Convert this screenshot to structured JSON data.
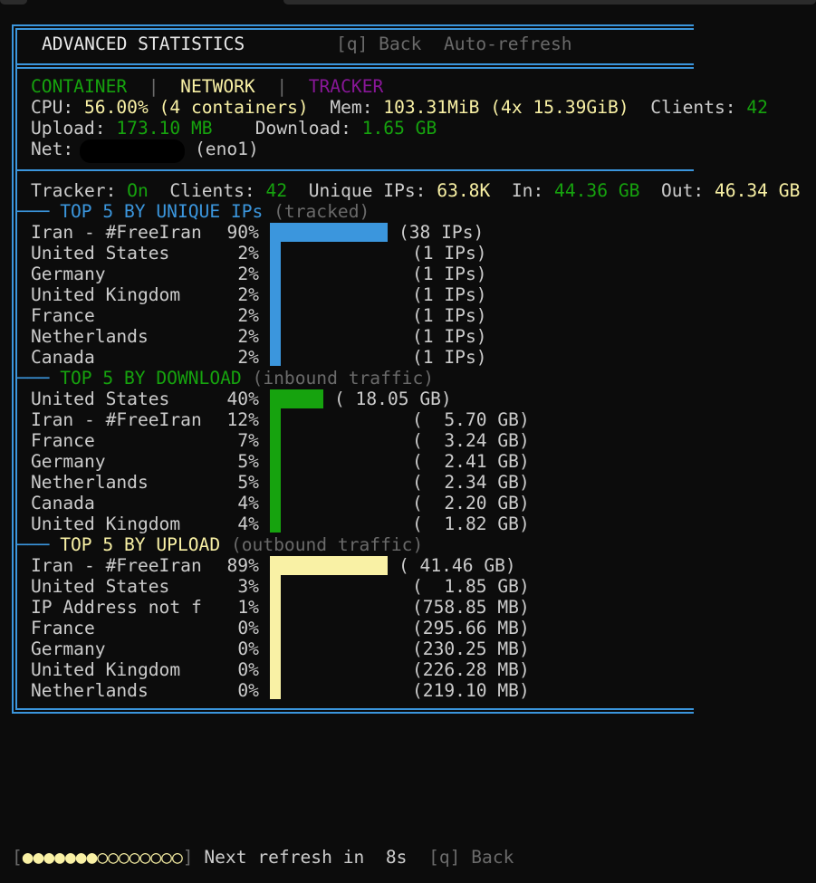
{
  "header": {
    "title": "ADVANCED STATISTICS",
    "back": "[q] Back",
    "auto_refresh": "Auto-refresh"
  },
  "tabs": {
    "container": "CONTAINER",
    "sep": "|",
    "network": "NETWORK",
    "tracker": "TRACKER"
  },
  "stats": {
    "cpu_label": "CPU:",
    "cpu_value": "56.00% (4 containers)",
    "mem_label": "Mem:",
    "mem_value": "103.31MiB (4x 15.39GiB)",
    "clients_label": "Clients:",
    "clients_value": "42",
    "upload_label": "Upload:",
    "upload_value": "173.10 MB",
    "download_label": "Download:",
    "download_value": "1.65 GB",
    "net_label": "Net:",
    "net_iface": "(eno1)"
  },
  "tracker": {
    "tracker_label": "Tracker:",
    "tracker_value": "On",
    "clients_label": "Clients:",
    "clients_value": "42",
    "unique_label": "Unique IPs:",
    "unique_value": "63.8K",
    "in_label": "In:",
    "in_value": "44.36 GB",
    "out_label": "Out:",
    "out_value": "46.34 GB"
  },
  "sections": [
    {
      "title": "TOP 5 BY UNIQUE IPs",
      "subtitle": "(tracked)",
      "color": "#3b96dd",
      "rows": [
        {
          "name": "Iran - #FreeIran",
          "pct": 90,
          "pct_label": "90%",
          "value": "(38 IPs)"
        },
        {
          "name": "United States",
          "pct": 2,
          "pct_label": "2%",
          "value": "(1 IPs)"
        },
        {
          "name": "Germany",
          "pct": 2,
          "pct_label": "2%",
          "value": "(1 IPs)"
        },
        {
          "name": "United Kingdom",
          "pct": 2,
          "pct_label": "2%",
          "value": "(1 IPs)"
        },
        {
          "name": "France",
          "pct": 2,
          "pct_label": "2%",
          "value": "(1 IPs)"
        },
        {
          "name": "Netherlands",
          "pct": 2,
          "pct_label": "2%",
          "value": "(1 IPs)"
        },
        {
          "name": "Canada",
          "pct": 2,
          "pct_label": "2%",
          "value": "(1 IPs)"
        }
      ]
    },
    {
      "title": "TOP 5 BY DOWNLOAD",
      "subtitle": "(inbound traffic)",
      "color": "#16a30e",
      "rows": [
        {
          "name": "United States",
          "pct": 40,
          "pct_label": "40%",
          "value": "( 18.05 GB)"
        },
        {
          "name": "Iran - #FreeIran",
          "pct": 12,
          "pct_label": "12%",
          "value": "(  5.70 GB)"
        },
        {
          "name": "France",
          "pct": 7,
          "pct_label": "7%",
          "value": "(  3.24 GB)"
        },
        {
          "name": "Germany",
          "pct": 5,
          "pct_label": "5%",
          "value": "(  2.41 GB)"
        },
        {
          "name": "Netherlands",
          "pct": 5,
          "pct_label": "5%",
          "value": "(  2.34 GB)"
        },
        {
          "name": "Canada",
          "pct": 4,
          "pct_label": "4%",
          "value": "(  2.20 GB)"
        },
        {
          "name": "United Kingdom",
          "pct": 4,
          "pct_label": "4%",
          "value": "(  1.82 GB)"
        }
      ]
    },
    {
      "title": "TOP 5 BY UPLOAD",
      "subtitle": "(outbound traffic)",
      "color": "#f9f1a5",
      "rows": [
        {
          "name": "Iran - #FreeIran",
          "pct": 89,
          "pct_label": "89%",
          "value": "( 41.46 GB)"
        },
        {
          "name": "United States",
          "pct": 3,
          "pct_label": "3%",
          "value": "(  1.85 GB)"
        },
        {
          "name": "IP Address not f",
          "pct": 1,
          "pct_label": "1%",
          "value": "(758.85 MB)"
        },
        {
          "name": "France",
          "pct": 0,
          "pct_label": "0%",
          "value": "(295.66 MB)"
        },
        {
          "name": "Germany",
          "pct": 0,
          "pct_label": "0%",
          "value": "(230.25 MB)"
        },
        {
          "name": "United Kingdom",
          "pct": 0,
          "pct_label": "0%",
          "value": "(226.28 MB)"
        },
        {
          "name": "Netherlands",
          "pct": 0,
          "pct_label": "0%",
          "value": "(219.10 MB)"
        }
      ]
    }
  ],
  "footer": {
    "progress_filled": 7,
    "progress_total": 15,
    "progress_text": "[●●●●●●●○○○○○○○○]",
    "next_refresh": "Next refresh in",
    "seconds": "8s",
    "back": "[q] Back"
  }
}
